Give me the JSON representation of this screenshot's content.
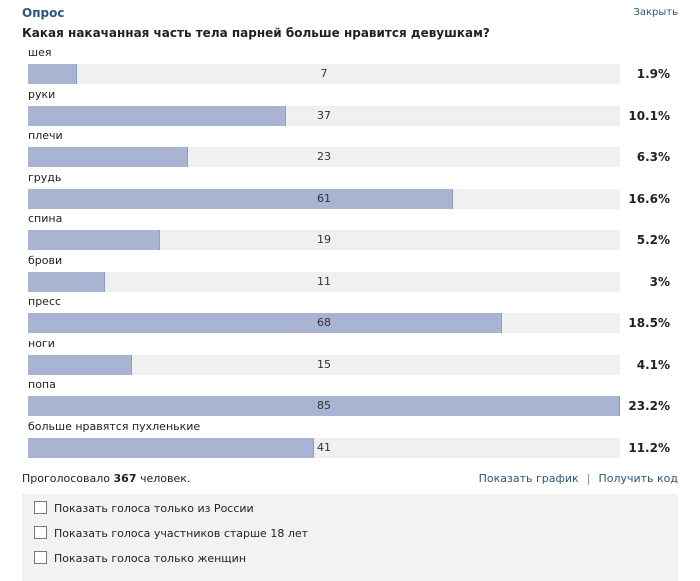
{
  "header": {
    "title": "Опрос",
    "close_label": "Закрыть"
  },
  "question": "Какая накачанная часть тела парней больше нравится девушкам?",
  "poll": {
    "max_votes": 85,
    "options": [
      {
        "label": "шея",
        "votes": "7",
        "percent": "1.9%"
      },
      {
        "label": "руки",
        "votes": "37",
        "percent": "10.1%"
      },
      {
        "label": "плечи",
        "votes": "23",
        "percent": "6.3%"
      },
      {
        "label": "грудь",
        "votes": "61",
        "percent": "16.6%"
      },
      {
        "label": "спина",
        "votes": "19",
        "percent": "5.2%"
      },
      {
        "label": "брови",
        "votes": "11",
        "percent": "3%"
      },
      {
        "label": "пресс",
        "votes": "68",
        "percent": "18.5%"
      },
      {
        "label": "ноги",
        "votes": "15",
        "percent": "4.1%"
      },
      {
        "label": "попа",
        "votes": "85",
        "percent": "23.2%"
      },
      {
        "label": "больше нравятся пухленькие",
        "votes": "41",
        "percent": "11.2%"
      }
    ]
  },
  "footer": {
    "total_prefix": "Проголосовало ",
    "total_count": "367",
    "total_suffix": " человек.",
    "show_chart_label": "Показать график",
    "separator": "|",
    "get_code_label": "Получить код"
  },
  "filters": [
    {
      "label": "Показать голоса только из России"
    },
    {
      "label": "Показать голоса участников старше 18 лет"
    },
    {
      "label": "Показать голоса только женщин"
    }
  ],
  "colors": {
    "bar_fill": "#a9b3d2",
    "bar_track": "#f0f0f0",
    "link": "#2b587a"
  }
}
